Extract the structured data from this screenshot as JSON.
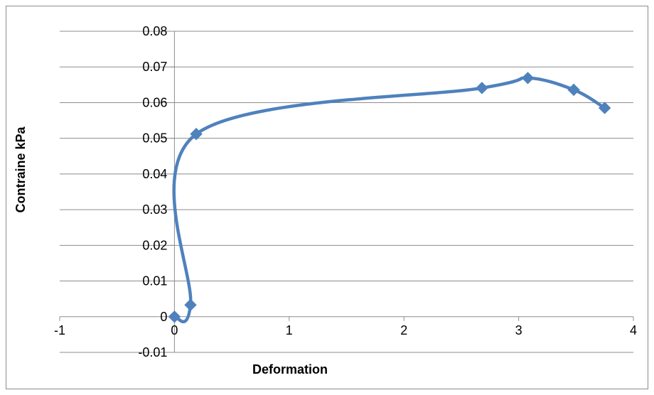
{
  "chart_data": {
    "type": "scatter",
    "title": "",
    "xlabel": "Deformation",
    "ylabel": "Contraine kPa",
    "xlim": [
      -1,
      4
    ],
    "ylim": [
      -0.01,
      0.08
    ],
    "x_ticks": [
      -1,
      0,
      1,
      2,
      3,
      4
    ],
    "x_tick_labels": [
      "-1",
      "0",
      "1",
      "2",
      "3",
      "4"
    ],
    "y_ticks": [
      -0.01,
      0,
      0.01,
      0.02,
      0.03,
      0.04,
      0.05,
      0.06,
      0.07,
      0.08
    ],
    "y_tick_labels": [
      "-0.01",
      "0",
      "0.01",
      "0.02",
      "0.03",
      "0.04",
      "0.05",
      "0.06",
      "0.07",
      "0.08"
    ],
    "grid": "horizontal",
    "legend": "none",
    "smooth_line": true,
    "marker": "diamond",
    "series": [
      {
        "color": "#4f81bd",
        "points": [
          {
            "x": 0,
            "y": 0
          },
          {
            "x": 0.14,
            "y": 0.0033
          },
          {
            "x": 0.19,
            "y": 0.0512
          },
          {
            "x": 2.68,
            "y": 0.0641
          },
          {
            "x": 3.08,
            "y": 0.0669
          },
          {
            "x": 3.48,
            "y": 0.0636
          },
          {
            "x": 3.75,
            "y": 0.0585
          }
        ]
      }
    ]
  }
}
